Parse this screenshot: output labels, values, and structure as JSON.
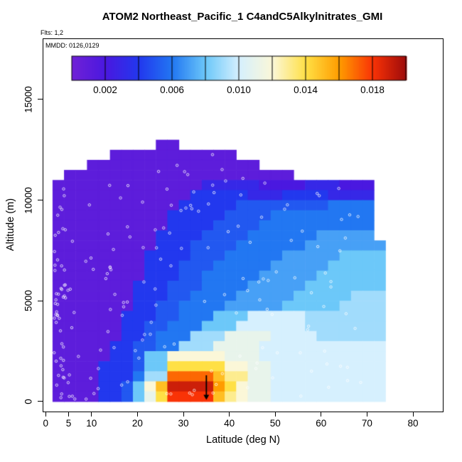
{
  "header": {
    "title": "ATOM2 Northeast_Pacific_1 C4andC5Alkylnitrates_GMI",
    "flights_label": "Flts: 1,2",
    "mmdd_label": "MMDD: 0126,0129"
  },
  "colors": {
    "background": "#FFFFFF",
    "box_border": "#000000",
    "text": "#000000",
    "marker": "#FFFFFF",
    "annotation": "#000000"
  },
  "chart_data": {
    "type": "heatmap",
    "title": "ATOM2 Northeast_Pacific_1 C4andC5Alkylnitrates_GMI",
    "xlabel": "Latitude (deg N)",
    "ylabel": "Altitude (m)",
    "x_ticks": [
      0,
      5,
      10,
      20,
      30,
      40,
      50,
      60,
      70,
      80
    ],
    "y_ticks": [
      0,
      5000,
      10000,
      15000
    ],
    "xlim": [
      -0.5,
      86.5
    ],
    "ylim": [
      -500,
      18000
    ],
    "grid_on": false,
    "value_range": [
      0,
      0.02
    ],
    "colorbar": {
      "position": "top-inside",
      "ticks": [
        0.002,
        0.006,
        0.01,
        0.014,
        0.018
      ],
      "tick_labels": [
        "0.002",
        "0.006",
        "0.010",
        "0.014",
        "0.018"
      ],
      "segments": 10
    },
    "palette_stops": [
      "#7021D6",
      "#4A18E0",
      "#2238EE",
      "#2277F2",
      "#6CC8F9",
      "#D6F0FE",
      "#FBF7D8",
      "#FFE045",
      "#FF9C00",
      "#F93306",
      "#9E0B0B"
    ],
    "markers": {
      "symbol": "open-circle",
      "color": "#FFFFFF"
    },
    "annotations": [
      {
        "type": "down-arrow",
        "lat": 35,
        "alt_from": 1300,
        "alt_to": 80
      }
    ],
    "grid": {
      "lat_start": 1.5,
      "lat_step": 2.5,
      "alt_top": 13000,
      "alt_step": 500,
      "level_map": {
        "1": 0.001,
        "2": 0.002,
        "3": 0.003,
        "4": 0.004,
        "5": 0.005,
        "6": 0.006,
        "7": 0.007,
        "8": 0.008,
        "9": 0.009,
        "A": 0.01,
        "B": 0.011,
        "C": 0.012,
        "D": 0.013,
        "E": 0.014,
        "F": 0.015,
        "G": 0.016,
        "H": 0.017,
        "I": 0.018,
        "J": 0.019
      },
      "rows_top_first": [
        ".........11...................",
        ".....11111111111..............",
        "...111111111111111............",
        ".11111111111111111111.........",
        "1111111111111333332222333222..",
        "1111111111114444433344443333..",
        "1111111111144444555555556666..",
        "1111111111444445555666666666..",
        "1111111111444455556666666666..",
        "1111111114444555566666677777..",
        "11111111144455556666667777777.",
        "11111111444455566666777778888.",
        "11111111444555666667777788888.",
        "11111111444556666677777888888.",
        "11111114445556666777778888888.",
        "11111114445566667777788888999.",
        "11111114455666677777888889999.",
        "11111144455666888AAAAA9999999.",
        "1111114455666888AAAAAA9999999.",
        "111111445666999BBBBAAAA999999.",
        "11111445566999BBBBAAAAAAAAAAA.",
        "1111144588CCCCCBBBAAAAAAAAAAA.",
        "1111444588EEEEECCBBAAAAAAAAAA.",
        "1111444699HHHHFDDBBAAAAAAAAAA.",
        "11114458CFJJJJGECBBAAAAAAAAAA.",
        "11114458BEIIIIFDCBBAAAAAAAAAA."
      ]
    }
  }
}
